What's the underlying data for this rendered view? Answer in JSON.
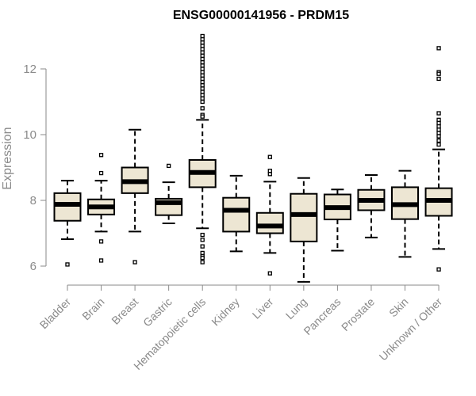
{
  "chart_data": {
    "type": "box",
    "title": "ENSG00000141956 - PRDM15",
    "xlabel": "",
    "ylabel": "Expression",
    "ylim": [
      5.5,
      13.1
    ],
    "yticks": [
      6,
      8,
      10,
      12
    ],
    "grid": false,
    "legend": "none",
    "colors": {
      "box_fill": "#ede6d3",
      "box_stroke": "#000000",
      "median": "#000000",
      "axis": "#8a8a8a"
    },
    "categories": [
      "Bladder",
      "Brain",
      "Breast",
      "Gastric",
      "Hematopoietic cells",
      "Kidney",
      "Liver",
      "Lung",
      "Pancreas",
      "Prostate",
      "Skin",
      "Unknown / Other"
    ],
    "boxes": [
      {
        "q1": 7.38,
        "median": 7.88,
        "q3": 8.22,
        "whisker_low": 6.82,
        "whisker_high": 8.6,
        "outliers": [
          6.05
        ]
      },
      {
        "q1": 7.57,
        "median": 7.8,
        "q3": 8.03,
        "whisker_low": 7.05,
        "whisker_high": 8.6,
        "outliers": [
          9.38,
          8.83,
          6.75,
          6.17
        ]
      },
      {
        "q1": 8.22,
        "median": 8.57,
        "q3": 9.0,
        "whisker_low": 7.05,
        "whisker_high": 10.15,
        "outliers": [
          6.12
        ]
      },
      {
        "q1": 7.55,
        "median": 7.93,
        "q3": 8.05,
        "whisker_low": 7.3,
        "whisker_high": 8.55,
        "outliers": [
          9.05
        ]
      },
      {
        "q1": 8.4,
        "median": 8.85,
        "q3": 9.23,
        "whisker_low": 7.15,
        "whisker_high": 10.45,
        "outliers": [
          13.0,
          12.9,
          12.8,
          12.7,
          12.6,
          12.5,
          12.4,
          12.3,
          12.2,
          12.1,
          12.0,
          11.9,
          11.8,
          11.7,
          11.6,
          11.5,
          11.4,
          11.3,
          11.2,
          11.1,
          11.0,
          10.8,
          10.6,
          10.55,
          6.95,
          6.8,
          6.6,
          6.4,
          6.3,
          6.25,
          6.12
        ]
      },
      {
        "q1": 7.05,
        "median": 7.7,
        "q3": 8.08,
        "whisker_low": 6.45,
        "whisker_high": 8.75,
        "outliers": []
      },
      {
        "q1": 7.0,
        "median": 7.22,
        "q3": 7.62,
        "whisker_low": 6.4,
        "whisker_high": 8.57,
        "outliers": [
          9.32,
          8.9,
          8.8,
          5.78
        ]
      },
      {
        "q1": 6.75,
        "median": 7.57,
        "q3": 8.2,
        "whisker_low": 5.52,
        "whisker_high": 8.68,
        "outliers": []
      },
      {
        "q1": 7.42,
        "median": 7.78,
        "q3": 8.18,
        "whisker_low": 6.47,
        "whisker_high": 8.33,
        "outliers": []
      },
      {
        "q1": 7.7,
        "median": 8.0,
        "q3": 8.32,
        "whisker_low": 6.87,
        "whisker_high": 8.77,
        "outliers": []
      },
      {
        "q1": 7.43,
        "median": 7.87,
        "q3": 8.4,
        "whisker_low": 6.28,
        "whisker_high": 8.9,
        "outliers": []
      },
      {
        "q1": 7.53,
        "median": 8.0,
        "q3": 8.37,
        "whisker_low": 6.52,
        "whisker_high": 9.55,
        "outliers": [
          12.63,
          11.9,
          11.85,
          11.7,
          10.65,
          10.45,
          10.35,
          10.25,
          10.15,
          10.05,
          9.95,
          9.82,
          9.7,
          5.9
        ]
      }
    ]
  }
}
